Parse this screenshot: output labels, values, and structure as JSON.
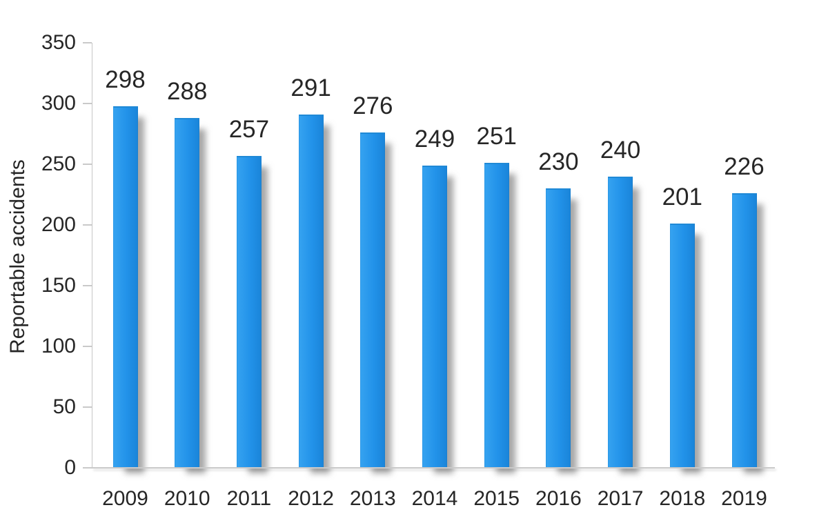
{
  "chart": {
    "background_color": "#ffffff",
    "text_color": "#262626",
    "axis_color": "#c9c9c9",
    "bar_color": "#2193e9"
  },
  "chart_data": {
    "type": "bar",
    "title": "",
    "xlabel": "",
    "ylabel": "Reportable accidents",
    "categories": [
      "2009",
      "2010",
      "2011",
      "2012",
      "2013",
      "2014",
      "2015",
      "2016",
      "2017",
      "2018",
      "2019"
    ],
    "values": [
      298,
      288,
      257,
      291,
      276,
      249,
      251,
      230,
      240,
      201,
      226
    ],
    "data_labels": [
      "298",
      "288",
      "257",
      "291",
      "276",
      "249",
      "251",
      "230",
      "240",
      "201",
      "226"
    ],
    "ylim": [
      0,
      350
    ],
    "yticks": [
      0,
      50,
      100,
      150,
      200,
      250,
      300,
      350
    ],
    "grid": false,
    "legend": false,
    "bar_color": "#2193e9",
    "data_labels_shown": true
  }
}
